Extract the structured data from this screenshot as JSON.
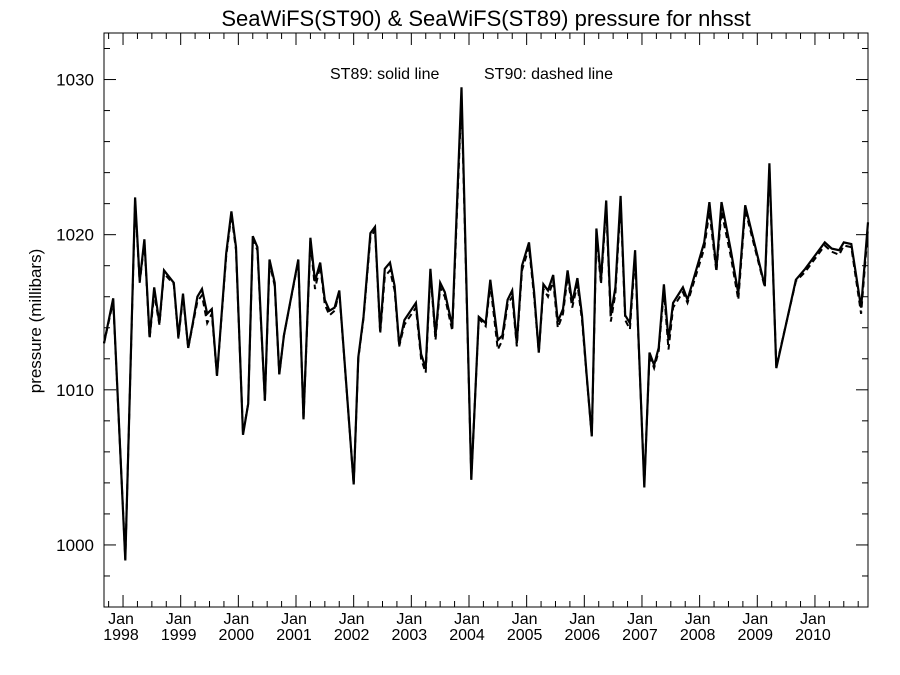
{
  "chart_data": {
    "type": "line",
    "title": "SeaWiFS(ST90) & SeaWiFS(ST89)  pressure for nhsst",
    "ylabel": "pressure (millibars)",
    "xlabel": "",
    "annotation_left": "ST89: solid line",
    "annotation_right": "ST90: dashed line",
    "ylim": [
      996,
      1033
    ],
    "xlim": [
      1997.67,
      2010.92
    ],
    "yticks": [
      1000,
      1010,
      1020,
      1030
    ],
    "xtick_top_label": "Jan",
    "xticks": [
      {
        "x": 1998,
        "label": "1998"
      },
      {
        "x": 1999,
        "label": "1999"
      },
      {
        "x": 2000,
        "label": "2000"
      },
      {
        "x": 2001,
        "label": "2001"
      },
      {
        "x": 2002,
        "label": "2002"
      },
      {
        "x": 2003,
        "label": "2003"
      },
      {
        "x": 2004,
        "label": "2004"
      },
      {
        "x": 2005,
        "label": "2005"
      },
      {
        "x": 2006,
        "label": "2006"
      },
      {
        "x": 2007,
        "label": "2007"
      },
      {
        "x": 2008,
        "label": "2008"
      },
      {
        "x": 2009,
        "label": "2009"
      },
      {
        "x": 2010,
        "label": "2010"
      }
    ],
    "grid": false,
    "series": [
      {
        "name": "ST89",
        "style": "solid",
        "points": [
          [
            1997.67,
            1013.0
          ],
          [
            1997.83,
            1015.9
          ],
          [
            1998.04,
            999.0
          ],
          [
            1998.21,
            1022.4
          ],
          [
            1998.29,
            1017.0
          ],
          [
            1998.37,
            1019.7
          ],
          [
            1998.46,
            1013.4
          ],
          [
            1998.54,
            1016.6
          ],
          [
            1998.63,
            1014.3
          ],
          [
            1998.71,
            1017.7
          ],
          [
            1998.88,
            1016.9
          ],
          [
            1998.96,
            1013.4
          ],
          [
            1999.04,
            1016.2
          ],
          [
            1999.13,
            1012.7
          ],
          [
            1999.21,
            1014.3
          ],
          [
            1999.29,
            1016.0
          ],
          [
            1999.37,
            1016.5
          ],
          [
            1999.46,
            1014.9
          ],
          [
            1999.54,
            1015.2
          ],
          [
            1999.63,
            1010.9
          ],
          [
            1999.79,
            1018.8
          ],
          [
            1999.88,
            1021.5
          ],
          [
            1999.96,
            1019.2
          ],
          [
            2000.08,
            1007.1
          ],
          [
            2000.17,
            1009.1
          ],
          [
            2000.25,
            1019.9
          ],
          [
            2000.33,
            1019.2
          ],
          [
            2000.46,
            1009.3
          ],
          [
            2000.54,
            1018.4
          ],
          [
            2000.63,
            1016.9
          ],
          [
            2000.71,
            1011.0
          ],
          [
            2000.79,
            1013.5
          ],
          [
            2001.04,
            1018.4
          ],
          [
            2001.13,
            1008.1
          ],
          [
            2001.25,
            1019.8
          ],
          [
            2001.33,
            1017.0
          ],
          [
            2001.42,
            1018.2
          ],
          [
            2001.5,
            1015.8
          ],
          [
            2001.58,
            1015.1
          ],
          [
            2001.67,
            1015.3
          ],
          [
            2001.75,
            1016.4
          ],
          [
            2002.0,
            1003.9
          ],
          [
            2002.08,
            1012.1
          ],
          [
            2002.17,
            1014.7
          ],
          [
            2002.29,
            1020.1
          ],
          [
            2002.37,
            1020.5
          ],
          [
            2002.46,
            1013.8
          ],
          [
            2002.54,
            1017.8
          ],
          [
            2002.63,
            1018.2
          ],
          [
            2002.71,
            1016.7
          ],
          [
            2002.79,
            1012.9
          ],
          [
            2002.88,
            1014.5
          ],
          [
            2003.08,
            1015.6
          ],
          [
            2003.17,
            1012.3
          ],
          [
            2003.25,
            1011.4
          ],
          [
            2003.33,
            1017.8
          ],
          [
            2003.42,
            1013.5
          ],
          [
            2003.5,
            1016.9
          ],
          [
            2003.58,
            1016.3
          ],
          [
            2003.71,
            1014.1
          ],
          [
            2003.87,
            1029.5
          ],
          [
            2004.04,
            1004.2
          ],
          [
            2004.17,
            1014.7
          ],
          [
            2004.29,
            1014.3
          ],
          [
            2004.37,
            1017.1
          ],
          [
            2004.5,
            1013.2
          ],
          [
            2004.58,
            1013.5
          ],
          [
            2004.67,
            1015.8
          ],
          [
            2004.75,
            1016.4
          ],
          [
            2004.83,
            1013.0
          ],
          [
            2004.92,
            1018.0
          ],
          [
            2005.04,
            1019.5
          ],
          [
            2005.13,
            1016.3
          ],
          [
            2005.21,
            1012.4
          ],
          [
            2005.29,
            1016.8
          ],
          [
            2005.37,
            1016.4
          ],
          [
            2005.46,
            1017.4
          ],
          [
            2005.54,
            1014.4
          ],
          [
            2005.63,
            1015.2
          ],
          [
            2005.71,
            1017.7
          ],
          [
            2005.79,
            1015.6
          ],
          [
            2005.88,
            1017.2
          ],
          [
            2005.96,
            1014.8
          ],
          [
            2006.04,
            1011.0
          ],
          [
            2006.13,
            1007.0
          ],
          [
            2006.21,
            1020.4
          ],
          [
            2006.29,
            1017.1
          ],
          [
            2006.38,
            1022.2
          ],
          [
            2006.46,
            1014.8
          ],
          [
            2006.54,
            1016.6
          ],
          [
            2006.63,
            1022.5
          ],
          [
            2006.71,
            1014.8
          ],
          [
            2006.79,
            1014.3
          ],
          [
            2006.88,
            1019.0
          ],
          [
            2007.04,
            1003.7
          ],
          [
            2007.13,
            1012.4
          ],
          [
            2007.21,
            1011.6
          ],
          [
            2007.29,
            1012.7
          ],
          [
            2007.38,
            1016.8
          ],
          [
            2007.46,
            1013.2
          ],
          [
            2007.54,
            1015.6
          ],
          [
            2007.71,
            1016.6
          ],
          [
            2007.79,
            1015.8
          ],
          [
            2008.08,
            1019.5
          ],
          [
            2008.17,
            1022.1
          ],
          [
            2008.29,
            1017.8
          ],
          [
            2008.38,
            1022.1
          ],
          [
            2008.54,
            1019.0
          ],
          [
            2008.67,
            1016.2
          ],
          [
            2008.79,
            1021.9
          ],
          [
            2009.13,
            1016.7
          ],
          [
            2009.21,
            1024.6
          ],
          [
            2009.33,
            1011.4
          ],
          [
            2009.67,
            1017.1
          ],
          [
            2009.83,
            1017.8
          ],
          [
            2010.17,
            1019.5
          ],
          [
            2010.29,
            1019.1
          ],
          [
            2010.42,
            1019.0
          ],
          [
            2010.5,
            1019.5
          ],
          [
            2010.63,
            1019.4
          ],
          [
            2010.8,
            1015.3
          ],
          [
            2010.92,
            1020.8
          ]
        ]
      },
      {
        "name": "ST90",
        "style": "dashed",
        "points": [
          [
            1997.67,
            1013.0
          ],
          [
            1997.83,
            1015.7
          ],
          [
            1998.04,
            999.1
          ],
          [
            1998.21,
            1022.2
          ],
          [
            1998.29,
            1016.9
          ],
          [
            1998.37,
            1019.5
          ],
          [
            1998.46,
            1013.3
          ],
          [
            1998.54,
            1016.2
          ],
          [
            1998.63,
            1014.2
          ],
          [
            1998.71,
            1017.5
          ],
          [
            1998.88,
            1016.8
          ],
          [
            1998.96,
            1013.3
          ],
          [
            1999.04,
            1016.0
          ],
          [
            1999.13,
            1012.7
          ],
          [
            1999.21,
            1014.2
          ],
          [
            1999.29,
            1015.7
          ],
          [
            1999.37,
            1016.1
          ],
          [
            1999.46,
            1014.3
          ],
          [
            1999.54,
            1014.9
          ],
          [
            1999.63,
            1010.9
          ],
          [
            1999.79,
            1018.6
          ],
          [
            1999.88,
            1021.3
          ],
          [
            1999.96,
            1019.0
          ],
          [
            2000.08,
            1007.2
          ],
          [
            2000.17,
            1009.1
          ],
          [
            2000.25,
            1019.7
          ],
          [
            2000.33,
            1019.0
          ],
          [
            2000.46,
            1009.3
          ],
          [
            2000.54,
            1018.2
          ],
          [
            2000.63,
            1016.7
          ],
          [
            2000.71,
            1011.0
          ],
          [
            2000.79,
            1013.5
          ],
          [
            2001.04,
            1018.3
          ],
          [
            2001.13,
            1008.1
          ],
          [
            2001.25,
            1019.6
          ],
          [
            2001.33,
            1016.5
          ],
          [
            2001.42,
            1018.0
          ],
          [
            2001.5,
            1015.5
          ],
          [
            2001.58,
            1014.8
          ],
          [
            2001.67,
            1015.1
          ],
          [
            2001.75,
            1016.3
          ],
          [
            2002.0,
            1003.9
          ],
          [
            2002.08,
            1012.0
          ],
          [
            2002.17,
            1014.6
          ],
          [
            2002.29,
            1019.8
          ],
          [
            2002.37,
            1020.3
          ],
          [
            2002.46,
            1013.6
          ],
          [
            2002.54,
            1017.3
          ],
          [
            2002.63,
            1017.7
          ],
          [
            2002.71,
            1016.4
          ],
          [
            2002.79,
            1012.8
          ],
          [
            2002.88,
            1014.2
          ],
          [
            2003.08,
            1015.3
          ],
          [
            2003.17,
            1012.0
          ],
          [
            2003.25,
            1011.1
          ],
          [
            2003.33,
            1017.6
          ],
          [
            2003.42,
            1013.2
          ],
          [
            2003.5,
            1016.6
          ],
          [
            2003.58,
            1016.0
          ],
          [
            2003.71,
            1013.8
          ],
          [
            2003.87,
            1028.8
          ],
          [
            2004.04,
            1004.3
          ],
          [
            2004.17,
            1014.6
          ],
          [
            2004.29,
            1014.1
          ],
          [
            2004.37,
            1016.8
          ],
          [
            2004.5,
            1012.6
          ],
          [
            2004.58,
            1013.2
          ],
          [
            2004.67,
            1015.5
          ],
          [
            2004.75,
            1016.0
          ],
          [
            2004.83,
            1012.8
          ],
          [
            2004.92,
            1017.7
          ],
          [
            2005.04,
            1019.2
          ],
          [
            2005.13,
            1016.0
          ],
          [
            2005.21,
            1012.4
          ],
          [
            2005.29,
            1016.5
          ],
          [
            2005.37,
            1016.0
          ],
          [
            2005.46,
            1017.0
          ],
          [
            2005.54,
            1014.0
          ],
          [
            2005.63,
            1014.9
          ],
          [
            2005.71,
            1017.3
          ],
          [
            2005.79,
            1015.3
          ],
          [
            2005.88,
            1016.8
          ],
          [
            2005.96,
            1014.5
          ],
          [
            2006.04,
            1010.9
          ],
          [
            2006.13,
            1007.0
          ],
          [
            2006.21,
            1020.0
          ],
          [
            2006.29,
            1016.8
          ],
          [
            2006.38,
            1021.8
          ],
          [
            2006.46,
            1014.4
          ],
          [
            2006.54,
            1016.2
          ],
          [
            2006.63,
            1022.1
          ],
          [
            2006.71,
            1014.5
          ],
          [
            2006.79,
            1013.9
          ],
          [
            2006.88,
            1018.6
          ],
          [
            2007.04,
            1003.9
          ],
          [
            2007.13,
            1012.2
          ],
          [
            2007.21,
            1011.4
          ],
          [
            2007.29,
            1012.5
          ],
          [
            2007.38,
            1016.4
          ],
          [
            2007.46,
            1012.6
          ],
          [
            2007.54,
            1015.3
          ],
          [
            2007.71,
            1016.3
          ],
          [
            2007.79,
            1015.6
          ],
          [
            2008.08,
            1019.1
          ],
          [
            2008.17,
            1021.5
          ],
          [
            2008.29,
            1017.6
          ],
          [
            2008.38,
            1021.5
          ],
          [
            2008.54,
            1018.6
          ],
          [
            2008.67,
            1015.8
          ],
          [
            2008.79,
            1021.6
          ],
          [
            2009.13,
            1016.6
          ],
          [
            2009.21,
            1024.3
          ],
          [
            2009.33,
            1011.5
          ],
          [
            2009.67,
            1017.0
          ],
          [
            2009.83,
            1017.6
          ],
          [
            2010.17,
            1019.3
          ],
          [
            2010.29,
            1018.9
          ],
          [
            2010.42,
            1018.7
          ],
          [
            2010.5,
            1019.3
          ],
          [
            2010.63,
            1019.2
          ],
          [
            2010.8,
            1014.9
          ],
          [
            2010.92,
            1020.4
          ]
        ]
      }
    ]
  }
}
